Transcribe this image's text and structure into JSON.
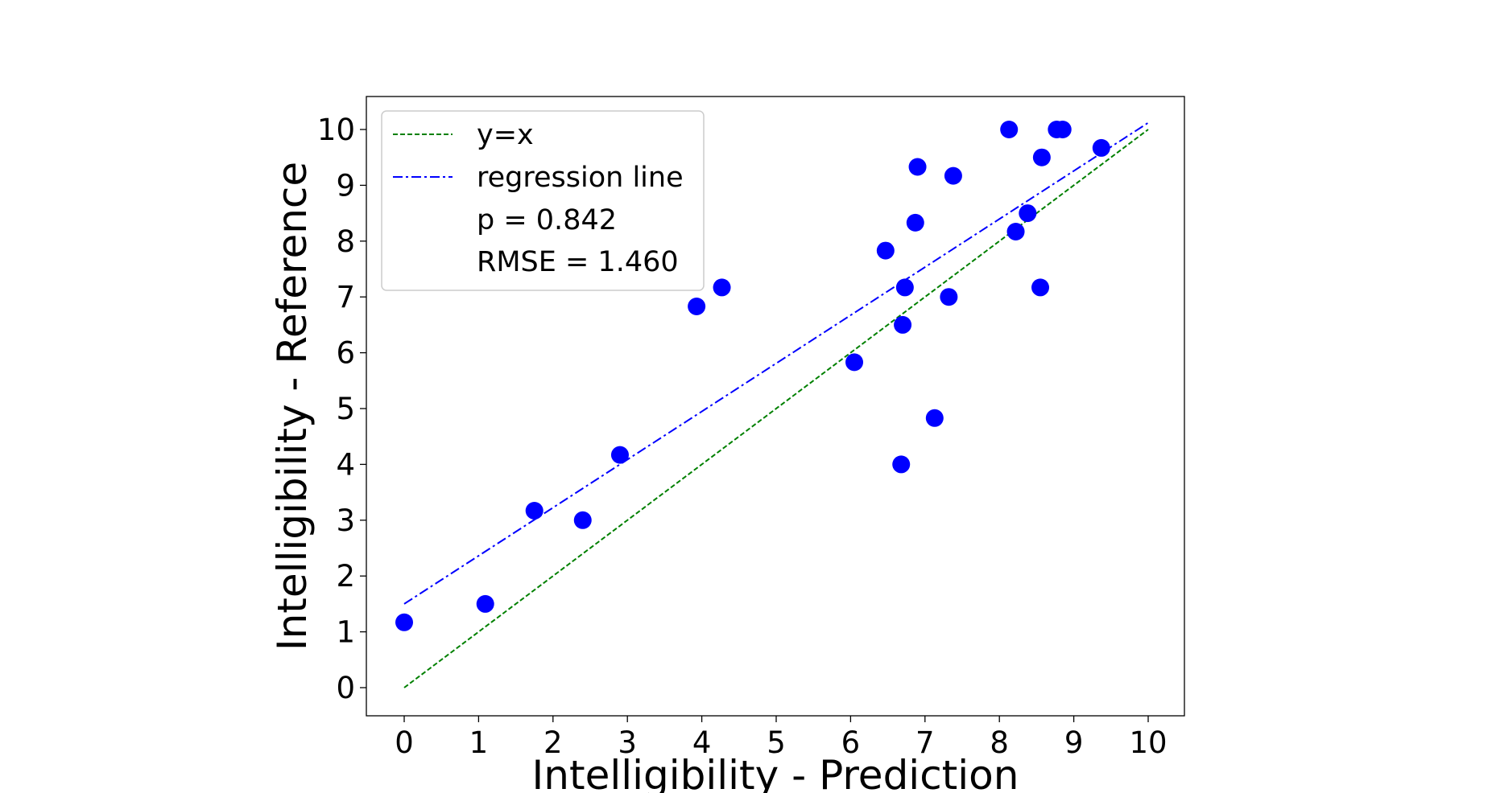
{
  "chart_data": {
    "type": "scatter",
    "title": "",
    "xlabel": "Intelligibility - Prediction",
    "ylabel": "Intelligibility - Reference",
    "xlim": [
      -0.5,
      10.5
    ],
    "ylim": [
      -0.5,
      10.6
    ],
    "xticks": [
      "0",
      "1",
      "2",
      "3",
      "4",
      "5",
      "6",
      "7",
      "8",
      "9",
      "10"
    ],
    "yticks": [
      "0",
      "1",
      "2",
      "3",
      "4",
      "5",
      "6",
      "7",
      "8",
      "9",
      "10"
    ],
    "grid": false,
    "legend_position": "upper-left",
    "legend": {
      "identity_label": "y=x",
      "regression_label": "regression line",
      "p_text": "p = 0.842",
      "rmse_text": "RMSE = 1.460"
    },
    "series": [
      {
        "name": "points",
        "marker": "circle",
        "color": "#0000ff",
        "points": [
          [
            0.0,
            1.17
          ],
          [
            1.09,
            1.5
          ],
          [
            1.75,
            3.17
          ],
          [
            2.4,
            3.0
          ],
          [
            2.9,
            4.17
          ],
          [
            3.93,
            6.83
          ],
          [
            4.27,
            7.17
          ],
          [
            6.05,
            5.83
          ],
          [
            6.47,
            7.83
          ],
          [
            6.68,
            4.0
          ],
          [
            6.7,
            6.5
          ],
          [
            6.73,
            7.17
          ],
          [
            6.87,
            8.33
          ],
          [
            6.9,
            9.33
          ],
          [
            7.13,
            4.83
          ],
          [
            7.32,
            7.0
          ],
          [
            7.38,
            9.17
          ],
          [
            8.13,
            10.0
          ],
          [
            8.22,
            8.17
          ],
          [
            8.38,
            8.5
          ],
          [
            8.55,
            7.17
          ],
          [
            8.57,
            9.5
          ],
          [
            8.77,
            10.0
          ],
          [
            8.85,
            10.0
          ],
          [
            9.37,
            9.67
          ]
        ]
      }
    ],
    "lines": [
      {
        "name": "y=x",
        "style": "dashed",
        "color": "#008000",
        "from": [
          0,
          0
        ],
        "to": [
          10,
          10
        ]
      },
      {
        "name": "regression line",
        "style": "dashdot",
        "color": "#0000ff",
        "from": [
          0,
          1.5
        ],
        "to": [
          10,
          10.12
        ]
      }
    ]
  }
}
